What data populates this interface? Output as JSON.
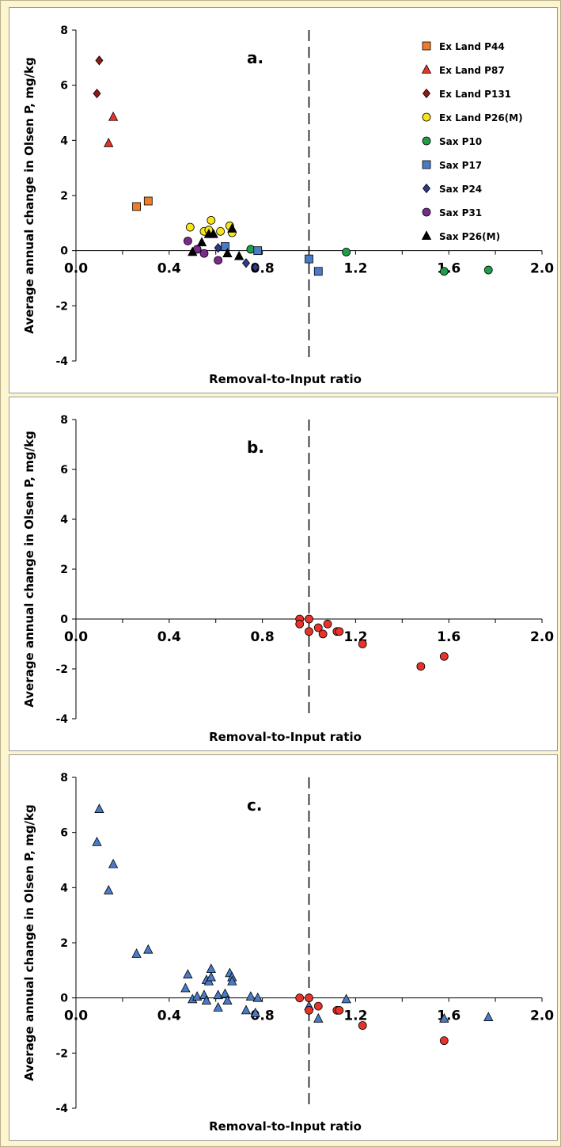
{
  "page": {
    "background": "#fdf5cf",
    "panel_background": "#ffffff"
  },
  "chart_data": [
    {
      "type": "scatter",
      "panel_label": "a.",
      "xlabel": "Removal-to-Input ratio",
      "ylabel": "Average annual change in Olsen P, mg/kg",
      "xlim": [
        0,
        2.0
      ],
      "ylim": [
        -4,
        8
      ],
      "x_ticks": [
        "0.0",
        "0.4",
        "0.8",
        "1.2",
        "1.6",
        "2.0"
      ],
      "y_ticks": [
        "8",
        "6",
        "4",
        "2",
        "0",
        "-2",
        "-4"
      ],
      "reference_line": {
        "x": 1.0,
        "style": "dashed"
      },
      "grid": false,
      "legend_position": "top-right",
      "series": [
        {
          "name": "Ex Land P44",
          "marker": "square",
          "color": "#f07c28",
          "points": [
            [
              0.26,
              1.6
            ],
            [
              0.31,
              1.8
            ]
          ]
        },
        {
          "name": "Ex Land P87",
          "marker": "triangle",
          "color": "#e8332a",
          "points": [
            [
              0.14,
              3.9
            ],
            [
              0.16,
              4.85
            ]
          ]
        },
        {
          "name": "Ex Land P131",
          "marker": "diamond",
          "color": "#8b1a1a",
          "points": [
            [
              0.1,
              6.9
            ],
            [
              0.09,
              5.7
            ]
          ]
        },
        {
          "name": "Ex Land P26(M)",
          "marker": "circle",
          "color": "#f7e41a",
          "points": [
            [
              0.49,
              0.85
            ],
            [
              0.55,
              0.7
            ],
            [
              0.57,
              0.75
            ],
            [
              0.58,
              1.1
            ],
            [
              0.62,
              0.7
            ],
            [
              0.66,
              0.9
            ],
            [
              0.67,
              0.65
            ]
          ]
        },
        {
          "name": "Sax P10",
          "marker": "circle",
          "color": "#1e9e4a",
          "points": [
            [
              0.75,
              0.05
            ],
            [
              1.16,
              -0.05
            ],
            [
              1.58,
              -0.75
            ],
            [
              1.77,
              -0.7
            ]
          ]
        },
        {
          "name": "Sax P17",
          "marker": "square",
          "color": "#4a7bc7",
          "points": [
            [
              0.64,
              0.15
            ],
            [
              0.78,
              0.0
            ],
            [
              1.0,
              -0.3
            ],
            [
              1.04,
              -0.75
            ]
          ]
        },
        {
          "name": "Sax P24",
          "marker": "diamond",
          "color": "#2e3a8c",
          "points": [
            [
              0.61,
              0.1
            ],
            [
              0.73,
              -0.45
            ],
            [
              0.77,
              -0.6
            ]
          ]
        },
        {
          "name": "Sax P31",
          "marker": "circle",
          "color": "#7a2a8c",
          "points": [
            [
              0.48,
              0.35
            ],
            [
              0.52,
              0.05
            ],
            [
              0.55,
              -0.1
            ],
            [
              0.61,
              -0.35
            ]
          ]
        },
        {
          "name": "Sax P26(M)",
          "marker": "triangle",
          "color": "#000000",
          "points": [
            [
              0.5,
              -0.05
            ],
            [
              0.54,
              0.3
            ],
            [
              0.57,
              0.6
            ],
            [
              0.59,
              0.6
            ],
            [
              0.65,
              -0.1
            ],
            [
              0.67,
              0.8
            ],
            [
              0.7,
              -0.2
            ]
          ]
        }
      ]
    },
    {
      "type": "scatter",
      "panel_label": "b.",
      "xlabel": "Removal-to-Input ratio",
      "ylabel": "Average annual change in Olsen P, mg/kg",
      "xlim": [
        0,
        2.0
      ],
      "ylim": [
        -4,
        8
      ],
      "x_ticks": [
        "0.0",
        "0.4",
        "0.8",
        "1.2",
        "1.6",
        "2.0"
      ],
      "y_ticks": [
        "8",
        "6",
        "4",
        "2",
        "0",
        "-2",
        "-4"
      ],
      "reference_line": {
        "x": 1.0,
        "style": "dashed"
      },
      "grid": false,
      "series": [
        {
          "name": "",
          "marker": "circle",
          "color": "#e8332a",
          "points": [
            [
              0.96,
              0.0
            ],
            [
              0.96,
              -0.2
            ],
            [
              1.0,
              0.0
            ],
            [
              1.0,
              -0.5
            ],
            [
              1.04,
              -0.35
            ],
            [
              1.06,
              -0.6
            ],
            [
              1.08,
              -0.2
            ],
            [
              1.12,
              -0.5
            ],
            [
              1.13,
              -0.5
            ],
            [
              1.23,
              -1.0
            ],
            [
              1.48,
              -1.9
            ],
            [
              1.58,
              -1.5
            ]
          ]
        }
      ]
    },
    {
      "type": "scatter",
      "panel_label": "c.",
      "xlabel": "Removal-to-Input ratio",
      "ylabel": "Average annual change in Olsen P, mg/kg",
      "xlim": [
        0,
        2.0
      ],
      "ylim": [
        -4,
        8
      ],
      "x_ticks": [
        "0.0",
        "0.4",
        "0.8",
        "1.2",
        "1.6",
        "2.0"
      ],
      "y_ticks": [
        "8",
        "6",
        "4",
        "2",
        "0",
        "-2",
        "-4"
      ],
      "reference_line": {
        "x": 1.0,
        "style": "dashed"
      },
      "grid": false,
      "series": [
        {
          "name": "",
          "marker": "triangle",
          "color": "#4a7bc7",
          "points": [
            [
              0.1,
              6.85
            ],
            [
              0.09,
              5.65
            ],
            [
              0.16,
              4.85
            ],
            [
              0.14,
              3.9
            ],
            [
              0.26,
              1.6
            ],
            [
              0.31,
              1.75
            ],
            [
              0.48,
              0.85
            ],
            [
              0.47,
              0.35
            ],
            [
              0.5,
              -0.05
            ],
            [
              0.52,
              0.05
            ],
            [
              0.55,
              0.1
            ],
            [
              0.56,
              -0.1
            ],
            [
              0.56,
              0.65
            ],
            [
              0.57,
              0.6
            ],
            [
              0.58,
              1.05
            ],
            [
              0.58,
              0.75
            ],
            [
              0.61,
              0.1
            ],
            [
              0.61,
              -0.35
            ],
            [
              0.64,
              0.15
            ],
            [
              0.65,
              -0.1
            ],
            [
              0.66,
              0.9
            ],
            [
              0.67,
              0.75
            ],
            [
              0.67,
              0.6
            ],
            [
              0.73,
              -0.45
            ],
            [
              0.75,
              0.05
            ],
            [
              0.77,
              -0.55
            ],
            [
              0.78,
              0.0
            ],
            [
              1.0,
              -0.3
            ],
            [
              1.04,
              -0.75
            ],
            [
              1.16,
              -0.05
            ],
            [
              1.58,
              -0.75
            ],
            [
              1.77,
              -0.7
            ]
          ]
        },
        {
          "name": "",
          "marker": "circle",
          "color": "#e8332a",
          "points": [
            [
              0.96,
              0.0
            ],
            [
              1.0,
              0.0
            ],
            [
              1.0,
              -0.45
            ],
            [
              1.04,
              -0.3
            ],
            [
              1.12,
              -0.45
            ],
            [
              1.13,
              -0.45
            ],
            [
              1.23,
              -1.0
            ],
            [
              1.58,
              -1.55
            ]
          ]
        }
      ]
    }
  ]
}
